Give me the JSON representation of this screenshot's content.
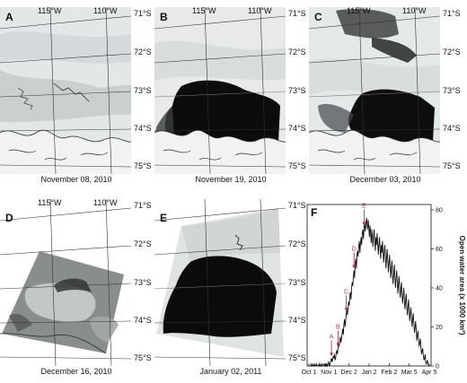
{
  "panels": [
    {
      "letter": "A",
      "date": "November 08, 2010"
    },
    {
      "letter": "B",
      "date": "November 19, 2010"
    },
    {
      "letter": "C",
      "date": "December 03, 2010"
    },
    {
      "letter": "D",
      "date": "December 16, 2010"
    },
    {
      "letter": "E",
      "date": "January 02, 2011"
    }
  ],
  "map_labels": {
    "lon": [
      "115°W",
      "110°W"
    ],
    "lat": [
      "71°S",
      "72°S",
      "73°S",
      "74°S",
      "75°S"
    ]
  },
  "chart_data": {
    "type": "line",
    "letter": "F",
    "ylabel": "Open water area (x 1000 km²)",
    "x_ticks": [
      "Oct 1",
      "Nov 1",
      "Dec 2",
      "Jan 2",
      "Feb 2",
      "Mar 5",
      "Apr 5"
    ],
    "y_ticks": [
      "0",
      "20",
      "40",
      "60",
      "80"
    ],
    "ylim": [
      0,
      80
    ],
    "annotations": [
      "A",
      "B",
      "C",
      "D",
      "E"
    ],
    "annotation_days": [
      38,
      49,
      63,
      76,
      93
    ],
    "series_color": "#111111",
    "annotation_color": "#c0304a",
    "values": [
      0,
      0,
      0,
      0,
      1,
      0,
      0,
      1,
      0,
      0,
      1,
      0,
      0,
      1,
      0,
      0,
      0,
      1,
      0,
      1,
      0,
      0,
      1,
      0,
      0,
      1,
      1,
      0,
      1,
      0,
      1,
      0,
      1,
      2,
      1,
      0,
      2,
      3,
      4,
      2,
      3,
      5,
      4,
      6,
      3,
      4,
      7,
      8,
      6,
      9,
      12,
      10,
      13,
      15,
      12,
      14,
      17,
      19,
      16,
      21,
      24,
      20,
      23,
      27,
      29,
      26,
      30,
      33,
      31,
      36,
      38,
      34,
      40,
      43,
      41,
      46,
      49,
      45,
      52,
      55,
      50,
      57,
      59,
      56,
      61,
      64,
      58,
      63,
      66,
      62,
      68,
      70,
      65,
      71,
      74,
      69,
      72,
      76,
      73,
      70,
      75,
      71,
      66,
      72,
      68,
      63,
      70,
      66,
      61,
      67,
      70,
      64,
      59,
      66,
      62,
      68,
      63,
      57,
      62,
      66,
      60,
      55,
      62,
      58,
      64,
      59,
      53,
      58,
      62,
      56,
      50,
      56,
      60,
      54,
      48,
      53,
      57,
      51,
      45,
      50,
      54,
      47,
      42,
      48,
      52,
      45,
      40,
      45,
      49,
      43,
      37,
      42,
      46,
      40,
      35,
      39,
      43,
      37,
      32,
      36,
      40,
      34,
      29,
      33,
      37,
      31,
      26,
      30,
      34,
      28,
      23,
      27,
      30,
      25,
      20,
      24,
      27,
      22,
      17,
      20,
      23,
      18,
      13,
      16,
      18,
      13,
      10,
      12,
      14,
      9,
      6,
      8,
      9,
      5,
      3,
      4,
      6,
      2,
      1,
      2,
      3,
      1,
      0,
      0
    ]
  }
}
